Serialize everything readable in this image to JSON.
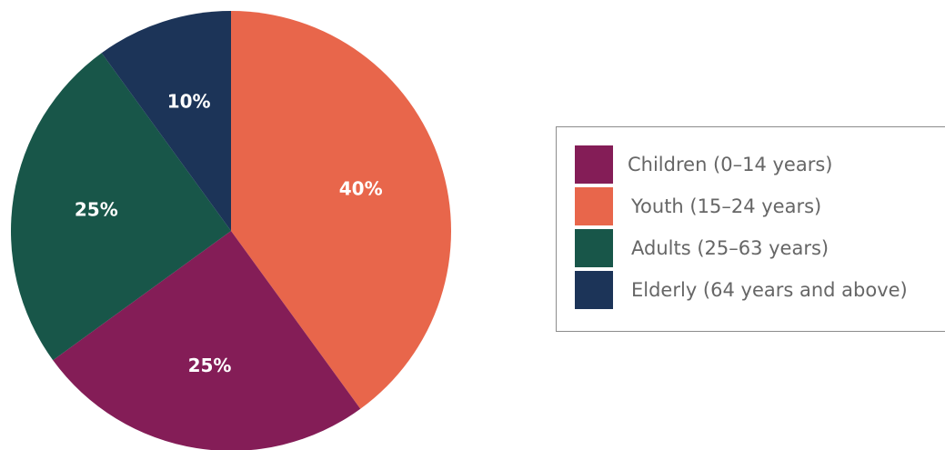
{
  "chart_data": {
    "type": "pie",
    "title": "",
    "slices": [
      {
        "label": "Youth (15–24 years)",
        "value": 40,
        "display": "40%",
        "color": "#E8664B"
      },
      {
        "label": "Children (0–14 years)",
        "value": 25,
        "display": "25%",
        "color": "#841D57"
      },
      {
        "label": "Adults (25–63 years)",
        "value": 25,
        "display": "25%",
        "color": "#185649"
      },
      {
        "label": "Elderly (64 years and above)",
        "value": 10,
        "display": "10%",
        "color": "#1C3458"
      }
    ],
    "legend_placement": "right",
    "legend": [
      {
        "label": "Children (0–14 years)",
        "color": "#841D57"
      },
      {
        "label": "Youth (15–24 years)",
        "color": "#E8664B"
      },
      {
        "label": "Adults (25–63 years)",
        "color": "#185649"
      },
      {
        "label": "Elderly (64 years and above)",
        "color": "#1C3458"
      }
    ]
  }
}
